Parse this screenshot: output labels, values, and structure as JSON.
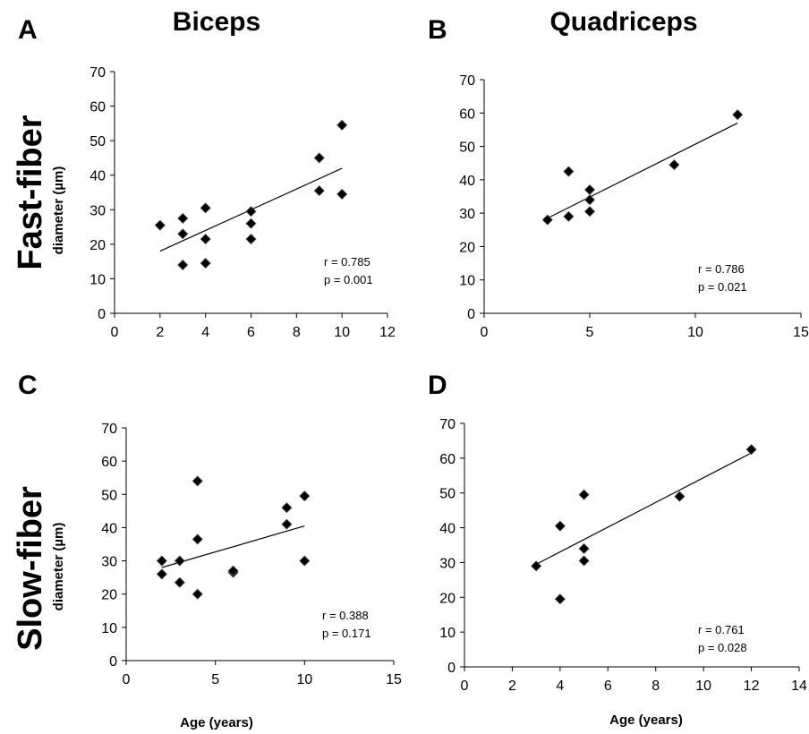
{
  "labels": {
    "col_biceps": "Biceps",
    "col_quadriceps": "Quadriceps",
    "row_fast": "Fast-fiber",
    "row_slow": "Slow-fiber",
    "ylabel": "diameter (µm)",
    "xlabel": "Age (years)"
  },
  "chart_data": [
    {
      "panel": "A",
      "type": "scatter",
      "xlim": [
        0,
        12
      ],
      "xticks": [
        0,
        2,
        4,
        6,
        8,
        10,
        12
      ],
      "ylim": [
        0,
        70
      ],
      "yticks": [
        0,
        10,
        20,
        30,
        40,
        50,
        60,
        70
      ],
      "points": [
        [
          2,
          25.5
        ],
        [
          3,
          14
        ],
        [
          3,
          23
        ],
        [
          3,
          27.5
        ],
        [
          4,
          14.5
        ],
        [
          4,
          21.5
        ],
        [
          4,
          30.5
        ],
        [
          6,
          21.5
        ],
        [
          6,
          26
        ],
        [
          6,
          29.5
        ],
        [
          9,
          35.5
        ],
        [
          9,
          45
        ],
        [
          10,
          34.5
        ],
        [
          10,
          54.5
        ]
      ],
      "trendline": [
        [
          2,
          18
        ],
        [
          10,
          42
        ]
      ],
      "r": "r = 0.785",
      "p": "p = 0.001"
    },
    {
      "panel": "B",
      "type": "scatter",
      "xlim": [
        0,
        15
      ],
      "xticks": [
        0,
        5,
        10,
        15
      ],
      "ylim": [
        0,
        70
      ],
      "yticks": [
        0,
        10,
        20,
        30,
        40,
        50,
        60,
        70
      ],
      "points": [
        [
          3,
          28
        ],
        [
          4,
          29
        ],
        [
          4,
          42.5
        ],
        [
          5,
          30.5
        ],
        [
          5,
          34
        ],
        [
          5,
          37
        ],
        [
          9,
          44.5
        ],
        [
          12,
          59.5
        ]
      ],
      "trendline": [
        [
          3,
          28.5
        ],
        [
          12,
          57
        ]
      ],
      "r": "r = 0.786",
      "p": "p = 0.021"
    },
    {
      "panel": "C",
      "type": "scatter",
      "xlim": [
        0,
        15
      ],
      "xticks": [
        0,
        5,
        10,
        15
      ],
      "ylim": [
        0,
        70
      ],
      "yticks": [
        0,
        10,
        20,
        30,
        40,
        50,
        60,
        70
      ],
      "points": [
        [
          2,
          26
        ],
        [
          2,
          30
        ],
        [
          3,
          23.5
        ],
        [
          3,
          30
        ],
        [
          4,
          20
        ],
        [
          4,
          36.5
        ],
        [
          4,
          54
        ],
        [
          6,
          26.5
        ],
        [
          6,
          27
        ],
        [
          9,
          41
        ],
        [
          9,
          46
        ],
        [
          10,
          30
        ],
        [
          10,
          49.5
        ]
      ],
      "trendline": [
        [
          2,
          28
        ],
        [
          10,
          40.5
        ]
      ],
      "r": "r = 0.388",
      "p": "p = 0.171"
    },
    {
      "panel": "D",
      "type": "scatter",
      "xlim": [
        0,
        14
      ],
      "xticks": [
        0,
        2,
        4,
        6,
        8,
        10,
        12,
        14
      ],
      "ylim": [
        0,
        70
      ],
      "yticks": [
        0,
        10,
        20,
        30,
        40,
        50,
        60,
        70
      ],
      "points": [
        [
          3,
          29
        ],
        [
          4,
          19.5
        ],
        [
          4,
          40.5
        ],
        [
          5,
          30.5
        ],
        [
          5,
          34
        ],
        [
          5,
          49.5
        ],
        [
          9,
          49
        ],
        [
          12,
          62.5
        ]
      ],
      "trendline": [
        [
          3,
          29.5
        ],
        [
          12,
          61.5
        ]
      ],
      "r": "r = 0.761",
      "p": "p = 0.028"
    }
  ]
}
